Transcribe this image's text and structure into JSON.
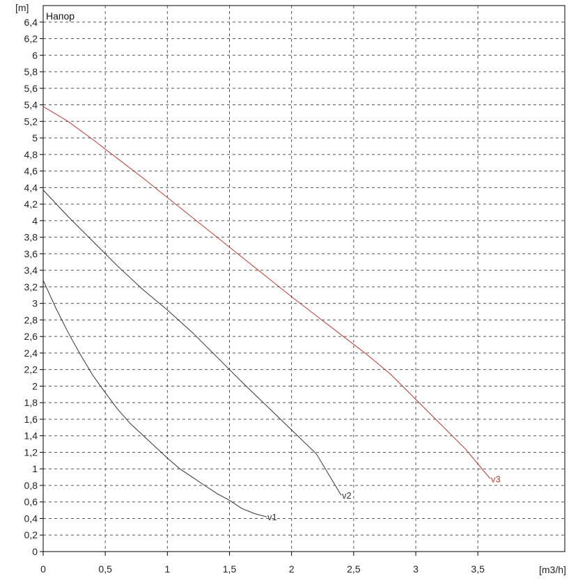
{
  "chart_data": {
    "type": "line",
    "title": "Напор",
    "ylabel": "[m]",
    "xlabel": "[m3/h]",
    "xlim": [
      0,
      4.2
    ],
    "ylim": [
      0,
      6.6
    ],
    "grid": true,
    "x_ticks": [
      {
        "v": 0,
        "label": "0"
      },
      {
        "v": 0.5,
        "label": "0,5"
      },
      {
        "v": 1,
        "label": "1"
      },
      {
        "v": 1.5,
        "label": "1,5"
      },
      {
        "v": 2,
        "label": "2"
      },
      {
        "v": 2.5,
        "label": "2,5"
      },
      {
        "v": 3,
        "label": "3"
      },
      {
        "v": 3.5,
        "label": "3,5"
      }
    ],
    "y_ticks": [
      {
        "v": 0,
        "label": "0"
      },
      {
        "v": 0.2,
        "label": "0,2"
      },
      {
        "v": 0.4,
        "label": "0,4"
      },
      {
        "v": 0.6,
        "label": "0,6"
      },
      {
        "v": 0.8,
        "label": "0,8"
      },
      {
        "v": 1,
        "label": "1"
      },
      {
        "v": 1.2,
        "label": "1,2"
      },
      {
        "v": 1.4,
        "label": "1,4"
      },
      {
        "v": 1.6,
        "label": "1,6"
      },
      {
        "v": 1.8,
        "label": "1,8"
      },
      {
        "v": 2,
        "label": "2"
      },
      {
        "v": 2.2,
        "label": "2,2"
      },
      {
        "v": 2.4,
        "label": "2,4"
      },
      {
        "v": 2.6,
        "label": "2,6"
      },
      {
        "v": 2.8,
        "label": "2,8"
      },
      {
        "v": 3,
        "label": "3"
      },
      {
        "v": 3.2,
        "label": "3,2"
      },
      {
        "v": 3.4,
        "label": "3,4"
      },
      {
        "v": 3.6,
        "label": "3,6"
      },
      {
        "v": 3.8,
        "label": "3,8"
      },
      {
        "v": 4,
        "label": "4"
      },
      {
        "v": 4.2,
        "label": "4,2"
      },
      {
        "v": 4.4,
        "label": "4,4"
      },
      {
        "v": 4.6,
        "label": "4,6"
      },
      {
        "v": 4.8,
        "label": "4,8"
      },
      {
        "v": 5,
        "label": "5"
      },
      {
        "v": 5.2,
        "label": "5,2"
      },
      {
        "v": 5.4,
        "label": "5,4"
      },
      {
        "v": 5.6,
        "label": "5,6"
      },
      {
        "v": 5.8,
        "label": "5,8"
      },
      {
        "v": 6,
        "label": "6"
      },
      {
        "v": 6.2,
        "label": "6,2"
      },
      {
        "v": 6.4,
        "label": "6,4"
      }
    ],
    "series": [
      {
        "name": "v1",
        "color": "#333333",
        "points": [
          [
            0,
            3.28
          ],
          [
            0.1,
            2.95
          ],
          [
            0.2,
            2.65
          ],
          [
            0.3,
            2.38
          ],
          [
            0.4,
            2.13
          ],
          [
            0.5,
            1.92
          ],
          [
            0.6,
            1.72
          ],
          [
            0.7,
            1.55
          ],
          [
            0.8,
            1.41
          ],
          [
            0.9,
            1.27
          ],
          [
            1.0,
            1.13
          ],
          [
            1.1,
            1.0
          ],
          [
            1.2,
            0.9
          ],
          [
            1.3,
            0.8
          ],
          [
            1.4,
            0.7
          ],
          [
            1.5,
            0.62
          ],
          [
            1.6,
            0.52
          ],
          [
            1.7,
            0.46
          ],
          [
            1.8,
            0.42
          ]
        ]
      },
      {
        "name": "v2",
        "color": "#333333",
        "points": [
          [
            0,
            4.37
          ],
          [
            0.2,
            4.05
          ],
          [
            0.4,
            3.75
          ],
          [
            0.6,
            3.45
          ],
          [
            0.8,
            3.17
          ],
          [
            1.0,
            2.92
          ],
          [
            1.2,
            2.65
          ],
          [
            1.4,
            2.35
          ],
          [
            1.6,
            2.05
          ],
          [
            1.8,
            1.76
          ],
          [
            2.0,
            1.47
          ],
          [
            2.2,
            1.18
          ],
          [
            2.4,
            0.68
          ]
        ]
      },
      {
        "name": "v3",
        "color": "#c0392b",
        "points": [
          [
            0,
            5.38
          ],
          [
            0.2,
            5.2
          ],
          [
            0.4,
            4.98
          ],
          [
            0.6,
            4.75
          ],
          [
            0.8,
            4.52
          ],
          [
            1.0,
            4.28
          ],
          [
            1.2,
            4.04
          ],
          [
            1.4,
            3.8
          ],
          [
            1.6,
            3.56
          ],
          [
            1.8,
            3.32
          ],
          [
            2.0,
            3.08
          ],
          [
            2.2,
            2.85
          ],
          [
            2.4,
            2.62
          ],
          [
            2.6,
            2.39
          ],
          [
            2.8,
            2.14
          ],
          [
            3.0,
            1.84
          ],
          [
            3.2,
            1.54
          ],
          [
            3.4,
            1.24
          ],
          [
            3.6,
            0.88
          ]
        ]
      }
    ]
  }
}
